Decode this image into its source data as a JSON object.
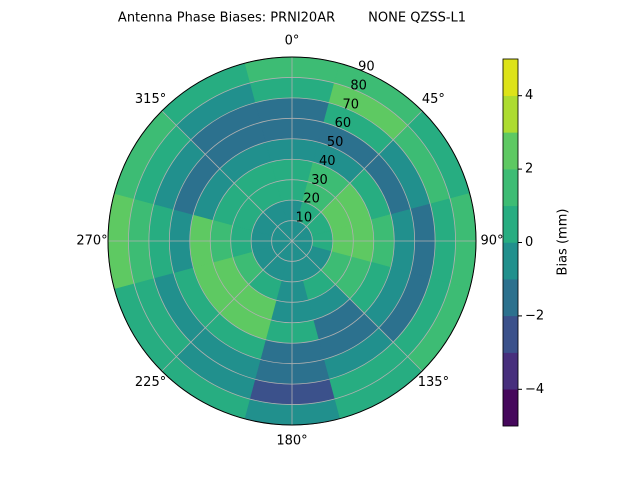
{
  "chart_data": {
    "type": "polar_contour",
    "title": "Antenna Phase Biases: PRNI20AR        NONE QZSS-L1",
    "rlim": [
      0,
      90
    ],
    "rticks": [
      10,
      20,
      30,
      40,
      50,
      60,
      70,
      80,
      90
    ],
    "thetaticks": [
      {
        "value": 0,
        "label": "0°"
      },
      {
        "value": 45,
        "label": "45°"
      },
      {
        "value": 90,
        "label": "90°"
      },
      {
        "value": 135,
        "label": "135°"
      },
      {
        "value": 180,
        "label": "180°"
      },
      {
        "value": 225,
        "label": "225°"
      },
      {
        "value": 270,
        "label": "270°"
      },
      {
        "value": 315,
        "label": "315°"
      }
    ],
    "theta": [
      0,
      30,
      60,
      90,
      120,
      150,
      180,
      210,
      240,
      270,
      300,
      330
    ],
    "r": [
      5,
      15,
      25,
      35,
      45,
      55,
      65,
      75,
      85
    ],
    "values": [
      [
        -0.5,
        -0.5,
        0.5,
        0.5,
        -0.5,
        -1.5,
        -1.5,
        0.5,
        1.5
      ],
      [
        -0.5,
        0.5,
        1.5,
        1.5,
        -0.5,
        -1.5,
        0.5,
        2.5,
        1.5
      ],
      [
        -0.5,
        0.5,
        2.5,
        2.5,
        0.5,
        -1.5,
        -0.5,
        1.5,
        0.5
      ],
      [
        -0.5,
        0.5,
        2.5,
        2.5,
        1.5,
        -0.5,
        -1.5,
        0.5,
        1.5
      ],
      [
        -0.5,
        -0.5,
        1.5,
        1.5,
        0.5,
        -0.5,
        -1.5,
        0.5,
        1.5
      ],
      [
        -0.5,
        -0.5,
        0.5,
        -0.5,
        -1.5,
        -1.5,
        -0.5,
        0.5,
        0.5
      ],
      [
        -0.5,
        -0.5,
        -0.5,
        -0.5,
        0.5,
        -1.5,
        -1.5,
        -2.5,
        -0.5
      ],
      [
        -0.5,
        -0.5,
        0.5,
        2.5,
        2.5,
        0.5,
        -0.5,
        -0.5,
        0.5
      ],
      [
        -0.5,
        -0.5,
        1.5,
        2.5,
        2.5,
        0.5,
        -0.5,
        0.5,
        0.5
      ],
      [
        -0.5,
        -0.5,
        0.5,
        1.5,
        2.5,
        -0.5,
        0.5,
        1.5,
        2.5
      ],
      [
        -0.5,
        -0.5,
        0.5,
        0.5,
        -0.5,
        -1.5,
        -0.5,
        0.5,
        1.5
      ],
      [
        -0.5,
        -0.5,
        0.5,
        0.5,
        -0.5,
        -1.5,
        -1.5,
        -0.5,
        0.5
      ]
    ],
    "colorbar": {
      "label": "Bias (mm)",
      "levels": [
        -5,
        -4,
        -3,
        -2,
        -1,
        0,
        1,
        2,
        3,
        4,
        5
      ],
      "colors": [
        "#46085c",
        "#472f7d",
        "#3b518b",
        "#2c718e",
        "#21908d",
        "#27ad81",
        "#3dbc74",
        "#5ec962",
        "#addc30",
        "#dde318"
      ],
      "ticks": [
        {
          "value": -4,
          "label": "−4"
        },
        {
          "value": -2,
          "label": "−2"
        },
        0,
        2,
        4
      ]
    },
    "grid": true
  }
}
